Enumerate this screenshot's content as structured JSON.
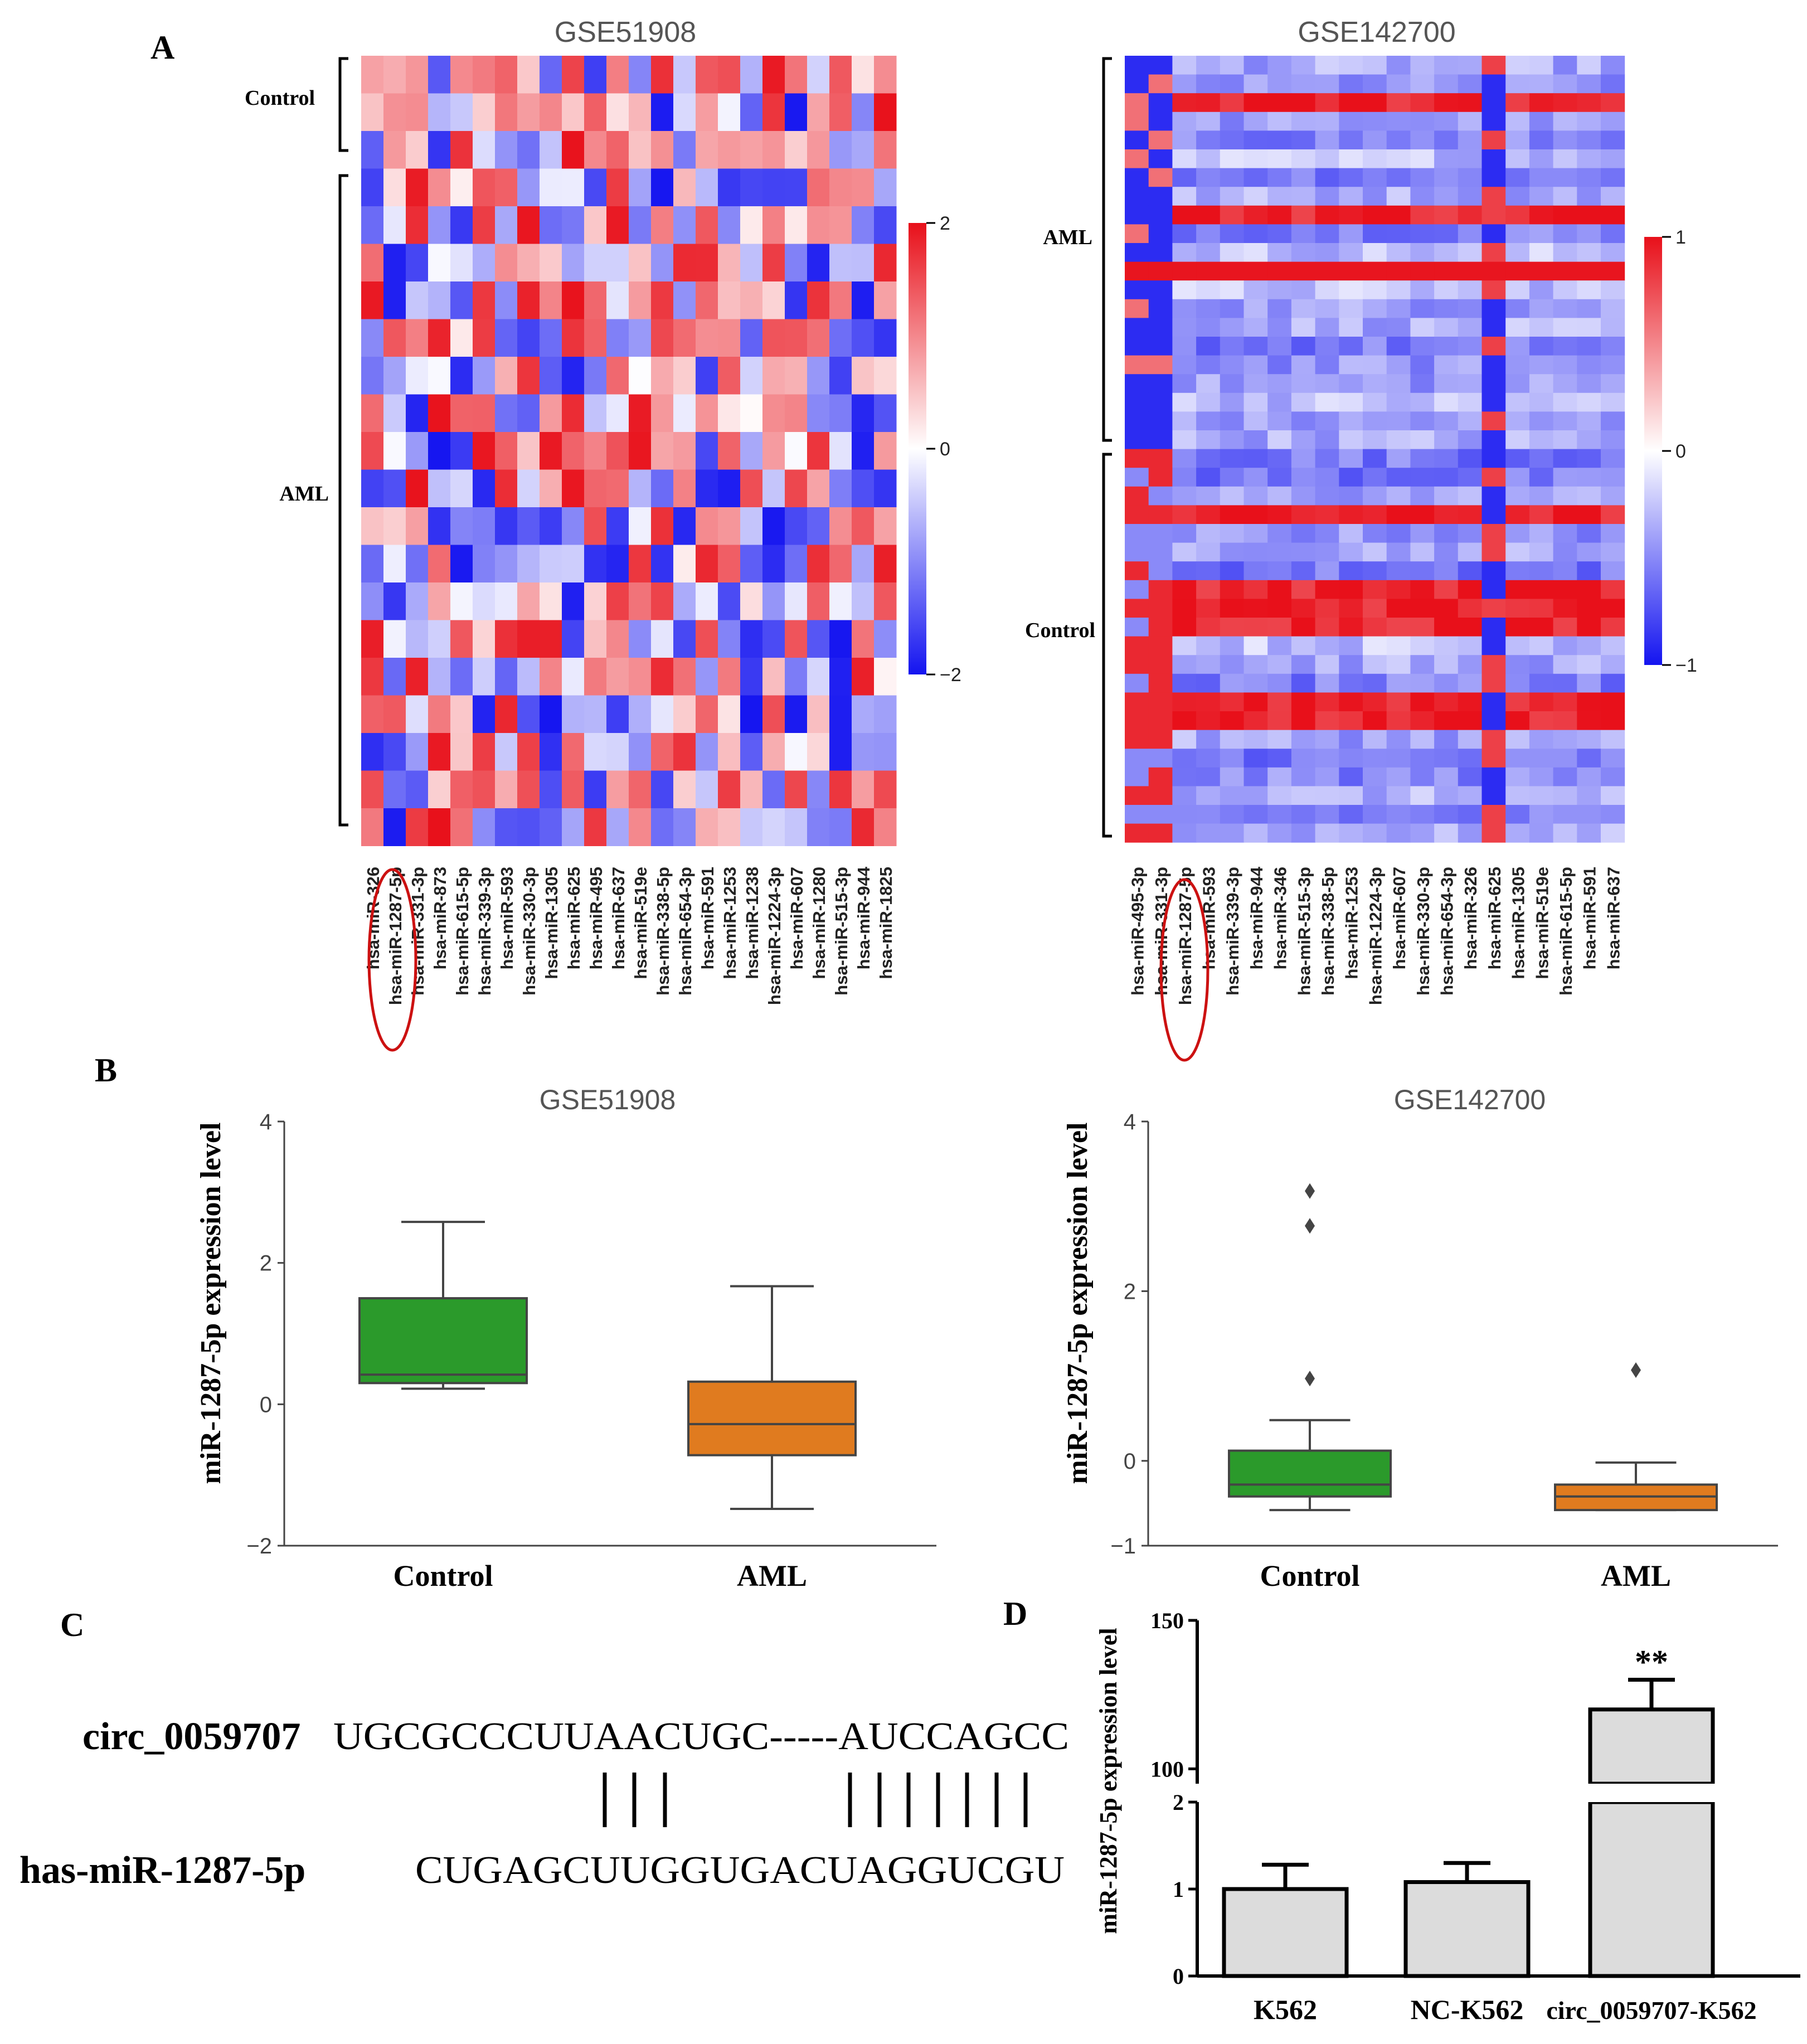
{
  "panels": {
    "A": "A",
    "B": "B",
    "C": "C",
    "D": "D"
  },
  "colors": {
    "high": "#e8101a",
    "mid": "#ffffff",
    "low": "#1414f0",
    "box_control": "#2b9a2b",
    "box_aml": "#e07b1f",
    "bar_fill": "#dcdcdc",
    "ellipse": "#cc1111"
  },
  "heatmap1": {
    "title": "GSE51908",
    "groups": [
      {
        "label": "Control",
        "rows": 3
      },
      {
        "label": "AML",
        "rows": 18
      }
    ],
    "columns": [
      "hsa-miR-326",
      "hsa-miR-1287-5p",
      "hsa-miR-331-3p",
      "hsa-miR-873",
      "hsa-miR-615-5p",
      "hsa-miR-339-3p",
      "hsa-miR-593",
      "hsa-miR-330-3p",
      "hsa-miR-1305",
      "hsa-miR-625",
      "hsa-miR-495",
      "hsa-miR-637",
      "hsa-miR-519e",
      "hsa-miR-338-5p",
      "hsa-miR-654-3p",
      "hsa-miR-591",
      "hsa-miR-1253",
      "hsa-miR-1238",
      "hsa-miR-1224-3p",
      "hsa-miR-607",
      "hsa-miR-1280",
      "hsa-miR-515-3p",
      "hsa-miR-944",
      "hsa-miR-1825"
    ],
    "highlight_column": 1,
    "colorbar": {
      "max": 2,
      "mid": 0,
      "min": -2,
      "labels": [
        "2",
        "0",
        "−2"
      ]
    }
  },
  "heatmap2": {
    "title": "GSE142700",
    "groups": [
      {
        "label": "AML",
        "rows": 21
      },
      {
        "label": "Control",
        "rows": 21
      }
    ],
    "columns": [
      "hsa-miR-495-3p",
      "hsa-miR-331-3p",
      "hsa-miR-1287-5p",
      "hsa-miR-593",
      "hsa-miR-339-3p",
      "hsa-miR-944",
      "hsa-miR-346",
      "hsa-miR-515-3p",
      "hsa-miR-338-5p",
      "hsa-miR-1253",
      "hsa-miR-1224-3p",
      "hsa-miR-607",
      "hsa-miR-330-3p",
      "hsa-miR-654-3p",
      "hsa-miR-326",
      "hsa-miR-625",
      "hsa-miR-1305",
      "hsa-miR-519e",
      "hsa-miR-615-5p",
      "hsa-miR-591",
      "hsa-miR-637"
    ],
    "highlight_column": 2,
    "colorbar": {
      "max": 1,
      "mid": 0,
      "min": -1,
      "labels": [
        "1",
        "0",
        "−1"
      ]
    }
  },
  "boxplot1": {
    "title": "GSE51908",
    "ylabel": "miR-1287-5p expression level",
    "ylim": [
      -2,
      4
    ],
    "yticks": [
      -2,
      0,
      2,
      4
    ],
    "ytick_labels": [
      "−2",
      "0",
      "2",
      "4"
    ],
    "boxes": [
      {
        "name": "Control",
        "whislo": 0.22,
        "q1": 0.3,
        "med": 0.42,
        "q3": 1.5,
        "whishi": 2.58,
        "fliers": []
      },
      {
        "name": "AML",
        "whislo": -1.48,
        "q1": -0.72,
        "med": -0.28,
        "q3": 0.32,
        "whishi": 1.67,
        "fliers": []
      }
    ]
  },
  "boxplot2": {
    "title": "GSE142700",
    "ylabel": "miR-1287-5p expression level",
    "ylim": [
      -1,
      4
    ],
    "yticks": [
      -1,
      0,
      2,
      4
    ],
    "ytick_labels": [
      "−1",
      "0",
      "2",
      "4"
    ],
    "boxes": [
      {
        "name": "Control",
        "whislo": -0.58,
        "q1": -0.42,
        "med": -0.28,
        "q3": 0.12,
        "whishi": 0.48,
        "fliers": [
          0.97,
          2.77,
          3.18
        ]
      },
      {
        "name": "AML",
        "whislo": -0.58,
        "q1": -0.58,
        "med": -0.42,
        "q3": -0.28,
        "whishi": -0.02,
        "fliers": [
          1.07
        ]
      }
    ]
  },
  "sequence": {
    "circ_label": "circ_0059707",
    "circ_seq": "UGCGCCCUUAACUGC-----AUCCAGCC",
    "mir_label": "has-miR-1287-5p",
    "mir_seq": "CUGAGCUUGGUGACUAGGUCGU",
    "pairs": 10
  },
  "barchart": {
    "ylabel": "miR-1287-5p expression level",
    "lower_ticks": [
      "0",
      "1",
      "2"
    ],
    "upper_ticks": [
      "100",
      "150"
    ],
    "categories": [
      "K562",
      "NC-K562",
      "circ_0059707-K562"
    ],
    "values": [
      1.0,
      1.08,
      120
    ],
    "errors": [
      0.28,
      0.22,
      10
    ],
    "significance": "**",
    "lower_range": [
      0,
      2
    ],
    "upper_range": [
      95,
      150
    ]
  }
}
